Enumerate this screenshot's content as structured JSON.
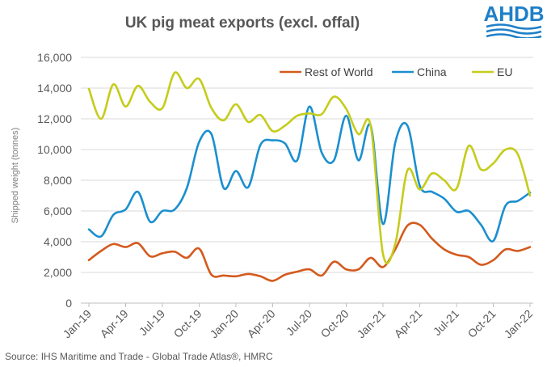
{
  "header": {
    "title": "UK pig meat exports (excl. offal)"
  },
  "logo": {
    "text": "AHDB"
  },
  "footer": {
    "source": "Source: IHS Maritime and Trade  - Global Trade  Atlas®, HMRC"
  },
  "colors": {
    "rest_of_world": "#d45a1e",
    "china": "#1b8fcf",
    "eu": "#c5cc1c",
    "grid": "#d9d9d9",
    "logo": "#1f7fc7"
  },
  "chart_data": {
    "type": "line",
    "title": "UK pig meat exports (excl. offal)",
    "xlabel": "",
    "ylabel": "Shipped  weight (tonnes)",
    "ylim": [
      0,
      16000
    ],
    "yticks": [
      0,
      2000,
      4000,
      6000,
      8000,
      10000,
      12000,
      14000,
      16000
    ],
    "ytick_labels": [
      "0",
      "2,000",
      "4,000",
      "6,000",
      "8,000",
      "10,000",
      "12,000",
      "14,000",
      "16,000"
    ],
    "xtick_labels": [
      "Jan-19",
      "Apr-19",
      "Jul-19",
      "Oct-19",
      "Jan-20",
      "Apr-20",
      "Jul-20",
      "Oct-20",
      "Jan-21",
      "Apr-21",
      "Jul-21",
      "Oct-21",
      "Jan-22"
    ],
    "xtick_every": 3,
    "legend_position": "top-right",
    "grid": true,
    "categories": [
      "Jan-19",
      "Feb-19",
      "Mar-19",
      "Apr-19",
      "May-19",
      "Jun-19",
      "Jul-19",
      "Aug-19",
      "Sep-19",
      "Oct-19",
      "Nov-19",
      "Dec-19",
      "Jan-20",
      "Feb-20",
      "Mar-20",
      "Apr-20",
      "May-20",
      "Jun-20",
      "Jul-20",
      "Aug-20",
      "Sep-20",
      "Oct-20",
      "Nov-20",
      "Dec-20",
      "Jan-21",
      "Feb-21",
      "Mar-21",
      "Apr-21",
      "May-21",
      "Jun-21",
      "Jul-21",
      "Aug-21",
      "Sep-21",
      "Oct-21",
      "Nov-21",
      "Dec-21",
      "Jan-22"
    ],
    "series": [
      {
        "name": "Rest of World",
        "color": "#d45a1e",
        "values": [
          2800,
          3400,
          3850,
          3650,
          3900,
          3050,
          3250,
          3350,
          2950,
          3550,
          1850,
          1800,
          1750,
          1900,
          1750,
          1450,
          1850,
          2050,
          2200,
          1800,
          2700,
          2200,
          2200,
          2950,
          2350,
          3500,
          5050,
          5100,
          4200,
          3500,
          3150,
          3000,
          2500,
          2800,
          3500,
          3400,
          3650
        ]
      },
      {
        "name": "China",
        "color": "#1b8fcf",
        "values": [
          4800,
          4350,
          5750,
          6100,
          7250,
          5300,
          6000,
          6100,
          7500,
          10500,
          11000,
          7500,
          8600,
          7550,
          10300,
          10600,
          10400,
          9300,
          12800,
          9800,
          9300,
          12200,
          9300,
          11550,
          5150,
          10450,
          11550,
          7650,
          7250,
          6800,
          5950,
          6000,
          5100,
          4050,
          6350,
          6650,
          7200
        ]
      },
      {
        "name": "EU",
        "color": "#c5cc1c",
        "values": [
          13950,
          12000,
          14250,
          12800,
          14150,
          13100,
          12700,
          15000,
          14000,
          14600,
          12700,
          11900,
          12950,
          11800,
          12250,
          11200,
          11550,
          12200,
          12350,
          12300,
          13450,
          12650,
          11000,
          11550,
          3200,
          3850,
          8650,
          7400,
          8450,
          8000,
          7450,
          10250,
          8700,
          9100,
          10000,
          9700,
          7000
        ]
      }
    ]
  }
}
